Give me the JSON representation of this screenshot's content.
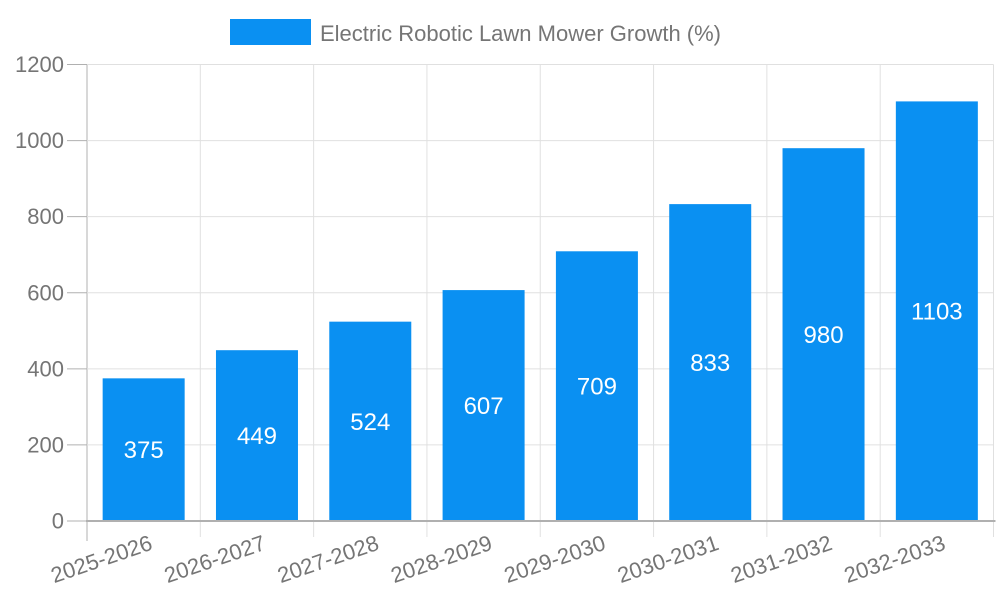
{
  "legend": {
    "title": "Electric Robotic Lawn Mower Growth (%)"
  },
  "chart_data": {
    "type": "bar",
    "title": "Electric Robotic Lawn Mower Growth (%)",
    "categories": [
      "2025-2026",
      "2026-2027",
      "2027-2028",
      "2028-2029",
      "2029-2030",
      "2030-2031",
      "2031-2032",
      "2032-2033"
    ],
    "values": [
      375,
      449,
      524,
      607,
      709,
      833,
      980,
      1103
    ],
    "xlabel": "",
    "ylabel": "",
    "ylim": [
      0,
      1200
    ],
    "yticks": [
      0,
      200,
      400,
      600,
      800,
      1000,
      1200
    ],
    "grid": true,
    "legend_position": "top",
    "bar_labels_inside": true,
    "colors": {
      "bar": "#0A90F2",
      "bar_label": "#FFFFFF",
      "axis_text": "#757575",
      "legend_text": "#757575",
      "gridline": "#E0E0E0",
      "axis_line": "#B0B0B0"
    }
  }
}
